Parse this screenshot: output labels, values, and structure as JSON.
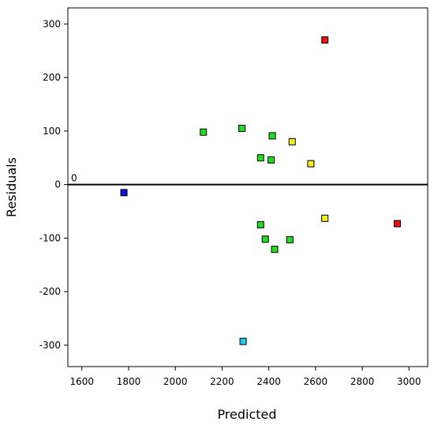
{
  "chart_data": {
    "type": "scatter",
    "title": "",
    "xlabel": "Predicted",
    "ylabel": "Residuals",
    "xlim": [
      1540,
      3080
    ],
    "ylim": [
      -340,
      330
    ],
    "grid": false,
    "x_ticks": [
      1600,
      1800,
      2000,
      2200,
      2400,
      2600,
      2800,
      3000
    ],
    "y_ticks": [
      -300,
      -200,
      -100,
      0,
      100,
      200,
      300
    ],
    "reference_line": {
      "y": 0,
      "label": "0"
    },
    "marker": "square",
    "points": [
      {
        "x": 1780,
        "y": -15,
        "color": "#1010dd"
      },
      {
        "x": 2120,
        "y": 98,
        "color": "#22dd22"
      },
      {
        "x": 2285,
        "y": 105,
        "color": "#22dd22"
      },
      {
        "x": 2415,
        "y": 91,
        "color": "#22dd22"
      },
      {
        "x": 2365,
        "y": 50,
        "color": "#22dd22"
      },
      {
        "x": 2410,
        "y": 46,
        "color": "#22dd22"
      },
      {
        "x": 2500,
        "y": 80,
        "color": "#eeee22"
      },
      {
        "x": 2580,
        "y": 39,
        "color": "#eeee22"
      },
      {
        "x": 2640,
        "y": 270,
        "color": "#ee1111"
      },
      {
        "x": 2365,
        "y": -75,
        "color": "#22dd22"
      },
      {
        "x": 2385,
        "y": -102,
        "color": "#22dd22"
      },
      {
        "x": 2425,
        "y": -121,
        "color": "#22dd22"
      },
      {
        "x": 2490,
        "y": -103,
        "color": "#22dd22"
      },
      {
        "x": 2640,
        "y": -63,
        "color": "#eeee22"
      },
      {
        "x": 2950,
        "y": -73,
        "color": "#ee1111"
      },
      {
        "x": 2290,
        "y": -293,
        "color": "#22ccee"
      }
    ]
  }
}
